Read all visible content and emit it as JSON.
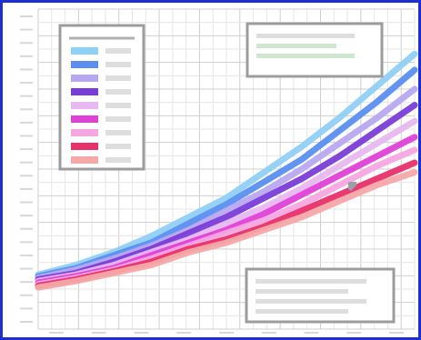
{
  "chart_data": {
    "type": "line",
    "title": "",
    "xlabel": "",
    "ylabel": "",
    "xlim": [
      0,
      1
    ],
    "ylim": [
      0,
      1
    ],
    "grid": true,
    "legend_placement": "top-left",
    "x_tick_labels": [
      "",
      "",
      "",
      "",
      "",
      "",
      "",
      "",
      ""
    ],
    "y_tick_labels": [
      "",
      "",
      "",
      "",
      "",
      "",
      "",
      "",
      "",
      "",
      "",
      "",
      "",
      "",
      "",
      "",
      "",
      "",
      "",
      "",
      "",
      "",
      "",
      ""
    ],
    "series": [
      {
        "name": "",
        "color": "#8fd0f5",
        "x": [
          0,
          0.1,
          0.2,
          0.3,
          0.4,
          0.5,
          0.6,
          0.7,
          0.8,
          0.9,
          1.0
        ],
        "y": [
          0.17,
          0.2,
          0.24,
          0.29,
          0.35,
          0.41,
          0.49,
          0.57,
          0.66,
          0.76,
          0.86
        ]
      },
      {
        "name": "",
        "color": "#5a8ff0",
        "x": [
          0,
          0.1,
          0.2,
          0.3,
          0.4,
          0.5,
          0.6,
          0.7,
          0.8,
          0.9,
          1.0
        ],
        "y": [
          0.165,
          0.19,
          0.23,
          0.27,
          0.33,
          0.39,
          0.46,
          0.53,
          0.62,
          0.71,
          0.81
        ]
      },
      {
        "name": "",
        "color": "#b8a8f0",
        "x": [
          0,
          0.1,
          0.2,
          0.3,
          0.4,
          0.5,
          0.6,
          0.7,
          0.8,
          0.9,
          1.0
        ],
        "y": [
          0.16,
          0.185,
          0.22,
          0.26,
          0.31,
          0.37,
          0.43,
          0.5,
          0.58,
          0.66,
          0.75
        ]
      },
      {
        "name": "",
        "color": "#7a3cd8",
        "x": [
          0,
          0.1,
          0.2,
          0.3,
          0.4,
          0.5,
          0.6,
          0.7,
          0.8,
          0.9,
          1.0
        ],
        "y": [
          0.155,
          0.175,
          0.21,
          0.25,
          0.3,
          0.35,
          0.41,
          0.47,
          0.54,
          0.62,
          0.7
        ]
      },
      {
        "name": "",
        "color": "#e8b8f0",
        "x": [
          0,
          0.1,
          0.2,
          0.3,
          0.4,
          0.5,
          0.6,
          0.7,
          0.8,
          0.9,
          1.0
        ],
        "y": [
          0.15,
          0.17,
          0.2,
          0.24,
          0.28,
          0.33,
          0.38,
          0.44,
          0.51,
          0.58,
          0.65
        ]
      },
      {
        "name": "",
        "color": "#e040d8",
        "x": [
          0,
          0.1,
          0.2,
          0.3,
          0.4,
          0.5,
          0.6,
          0.7,
          0.8,
          0.9,
          1.0
        ],
        "y": [
          0.145,
          0.165,
          0.19,
          0.23,
          0.27,
          0.31,
          0.36,
          0.42,
          0.48,
          0.54,
          0.6
        ]
      },
      {
        "name": "",
        "color": "#f5a8e0",
        "x": [
          0,
          0.1,
          0.2,
          0.3,
          0.4,
          0.5,
          0.6,
          0.7,
          0.8,
          0.9,
          1.0
        ],
        "y": [
          0.14,
          0.16,
          0.185,
          0.22,
          0.26,
          0.3,
          0.34,
          0.39,
          0.45,
          0.51,
          0.56
        ]
      },
      {
        "name": "",
        "color": "#e8306a",
        "x": [
          0,
          0.1,
          0.2,
          0.3,
          0.4,
          0.5,
          0.6,
          0.7,
          0.8,
          0.9,
          1.0
        ],
        "y": [
          0.135,
          0.155,
          0.18,
          0.21,
          0.25,
          0.28,
          0.32,
          0.37,
          0.42,
          0.47,
          0.52
        ]
      },
      {
        "name": "",
        "color": "#f5a8a8",
        "x": [
          0,
          0.1,
          0.2,
          0.3,
          0.4,
          0.5,
          0.6,
          0.7,
          0.8,
          0.9,
          1.0
        ],
        "y": [
          0.13,
          0.15,
          0.175,
          0.2,
          0.24,
          0.27,
          0.31,
          0.35,
          0.4,
          0.45,
          0.49
        ]
      }
    ],
    "legend_title": "",
    "annotations": [
      {
        "lines": [
          "",
          "",
          ""
        ]
      },
      {
        "lines": [
          "",
          "",
          "",
          ""
        ]
      }
    ]
  }
}
